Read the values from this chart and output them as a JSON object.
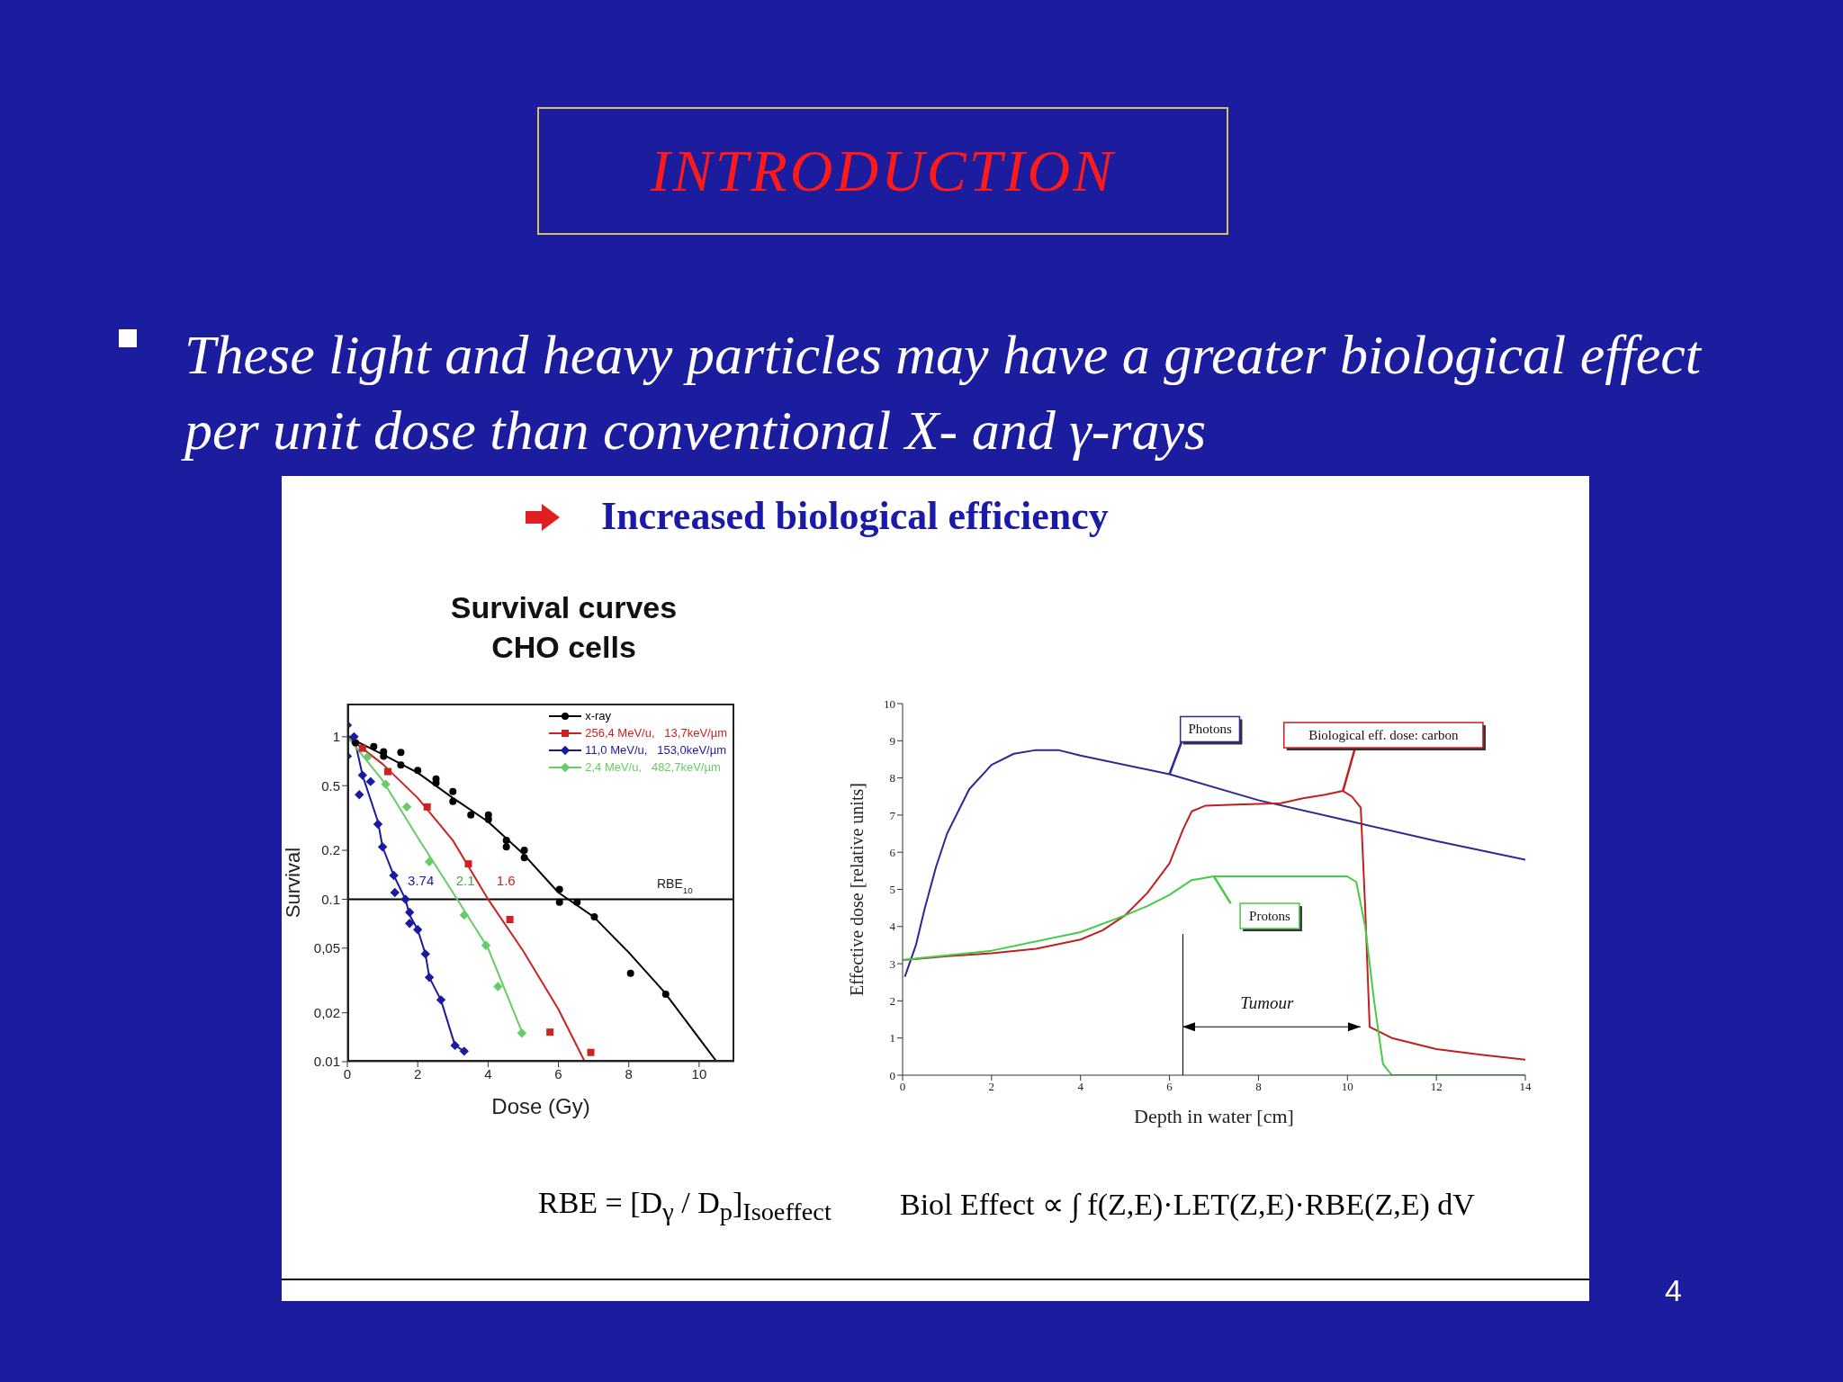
{
  "chart_data": [
    {
      "type": "other",
      "title": "INTRODUCTION",
      "annotations": [
        "These light and heavy particles may have a greater biological effect per unit dose than conventional X- and γ-rays",
        "Increased biological efficiency",
        "RBE = [D$_{γ}$ / D$_{p}$]$_{Isoeffect}$",
        "Biol Effect ∝ ∫ f(Z,E)·LET(Z,E)·RBE(Z,E) dV",
        "4"
      ]
    },
    {
      "type": "scatter",
      "title": "Survival curves",
      "subtitle": "CHO cells",
      "xlabel": "Dose (Gy)",
      "ylabel": "Survival",
      "log": "y",
      "xlim": [
        0,
        11
      ],
      "xticks": [
        0,
        2,
        4,
        6,
        8,
        10
      ],
      "ylim": [
        0.01,
        1.6
      ],
      "yticks": [
        0.01,
        {
          "value": 0.02,
          "label": "0,02"
        },
        {
          "value": 0.05,
          "label": "0,05"
        },
        0.1,
        0.2,
        0.5,
        1
      ],
      "legend": "top right",
      "ref_lines": [
        {
          "axis": "y",
          "value": 0.1,
          "label": "RBE$_{10}$"
        }
      ],
      "annotations": [
        "3.74",
        "2.1",
        "1.6"
      ],
      "series": [
        {
          "name": "x-ray",
          "color": "#000000",
          "marker": "circle",
          "x": [
            0.23,
            0.75,
            1.03,
            1.03,
            1.52,
            1.52,
            2.0,
            2.52,
            2.52,
            3.0,
            3.0,
            3.51,
            4.01,
            4.01,
            4.52,
            4.52,
            5.03,
            5.03,
            6.03,
            6.03,
            6.53,
            7.02,
            8.05,
            9.05
          ],
          "values": [
            0.92,
            0.87,
            0.81,
            0.76,
            0.8,
            0.67,
            0.62,
            0.55,
            0.52,
            0.46,
            0.4,
            0.33,
            0.33,
            0.31,
            0.23,
            0.21,
            0.2,
            0.18,
            0.115,
            0.096,
            0.096,
            0.078,
            0.035,
            0.026
          ]
        },
        {
          "type": "line",
          "color": "#000000",
          "x": [
            0,
            1,
            2,
            3,
            4,
            5,
            6,
            7,
            8,
            9,
            10.5
          ],
          "values": [
            1,
            0.78,
            0.6,
            0.42,
            0.3,
            0.19,
            0.11,
            0.078,
            0.047,
            0.027,
            0.01
          ]
        },
        {
          "name": "256,4 MeV/u,   13,7keV/µm",
          "color": "#cc2222",
          "marker": "square",
          "x": [
            0.43,
            1.15,
            2.27,
            3.44,
            4.62,
            5.76,
            6.92
          ],
          "values": [
            0.85,
            0.61,
            0.37,
            0.165,
            0.075,
            0.0152,
            0.0114
          ]
        },
        {
          "type": "line",
          "color": "#cc2222",
          "x": [
            0,
            1,
            2,
            3,
            4,
            5,
            6,
            6.75
          ],
          "values": [
            1,
            0.68,
            0.42,
            0.23,
            0.1,
            0.048,
            0.021,
            0.01
          ]
        },
        {
          "name": "11,0 MeV/u,   153,0keV/µm",
          "color": "#1a1aa0",
          "marker": "diamond",
          "x": [
            0,
            0,
            0.19,
            0.34,
            0.43,
            0.66,
            0.87,
            1.0,
            1.32,
            1.35,
            1.65,
            1.77,
            1.77,
            2.0,
            2.22,
            2.33,
            2.66,
            3.06,
            3.32
          ],
          "values": [
            1.18,
            0.76,
            1.0,
            0.44,
            0.58,
            0.53,
            0.29,
            0.21,
            0.14,
            0.11,
            0.1,
            0.083,
            0.071,
            0.065,
            0.046,
            0.033,
            0.024,
            0.0126,
            0.0116
          ]
        },
        {
          "type": "line",
          "color": "#1a1aa0",
          "x": [
            0,
            0.19,
            0.43,
            0.87,
            1.0,
            1.32,
            1.65,
            1.77,
            2.0,
            2.22,
            2.33,
            2.66,
            3.06,
            3.32
          ],
          "values": [
            1,
            1,
            0.58,
            0.3,
            0.21,
            0.14,
            0.1,
            0.08,
            0.065,
            0.046,
            0.033,
            0.024,
            0.0126,
            0.0116
          ]
        },
        {
          "name": "2,4 MeV/u,   482,7keV/µm",
          "color": "#66cc66",
          "marker": "diamond",
          "x": [
            0.57,
            1.09,
            1.69,
            2.33,
            3.32,
            3.94,
            4.28,
            4.96
          ],
          "values": [
            0.75,
            0.51,
            0.37,
            0.17,
            0.08,
            0.052,
            0.029,
            0.015
          ]
        },
        {
          "type": "line",
          "color": "#66cc66",
          "x": [
            0,
            1,
            2,
            3,
            4,
            5
          ],
          "values": [
            1,
            0.54,
            0.24,
            0.11,
            0.05,
            0.0146
          ]
        }
      ]
    },
    {
      "type": "line",
      "xlabel": "Depth in water [cm]",
      "ylabel": "Effective dose [relative units]",
      "xlim": [
        0,
        14
      ],
      "xticks": [
        0,
        2,
        4,
        6,
        8,
        10,
        12,
        14
      ],
      "ylim": [
        0,
        10
      ],
      "yticks": [
        0,
        1,
        2,
        3,
        4,
        5,
        6,
        7,
        8,
        9,
        10
      ],
      "annotations": [
        "Tumour"
      ],
      "series": [
        {
          "name": "Photons",
          "color": "#2a2a90",
          "x": [
            0.05,
            0.3,
            0.5,
            0.75,
            1,
            1.5,
            2,
            2.5,
            3,
            3.5,
            4,
            6,
            8,
            10,
            12,
            14
          ],
          "values": [
            2.65,
            3.5,
            4.5,
            5.6,
            6.5,
            7.7,
            8.35,
            8.65,
            8.75,
            8.75,
            8.6,
            8.1,
            7.4,
            6.85,
            6.3,
            5.8
          ]
        },
        {
          "name": "Biological eff. dose: carbon",
          "color": "#c02020",
          "x": [
            0,
            1,
            2,
            3,
            4,
            4.5,
            5,
            5.5,
            6,
            6.3,
            6.5,
            6.8,
            7.5,
            8,
            8.5,
            9,
            9.5,
            9.9,
            10.1,
            10.3,
            10.4,
            10.5,
            11,
            12,
            13,
            14
          ],
          "values": [
            3.1,
            3.2,
            3.28,
            3.4,
            3.65,
            3.9,
            4.3,
            4.9,
            5.7,
            6.6,
            7.1,
            7.25,
            7.28,
            7.3,
            7.32,
            7.45,
            7.55,
            7.65,
            7.5,
            7.2,
            4.5,
            1.3,
            1.0,
            0.7,
            0.55,
            0.42
          ]
        },
        {
          "name": "Protons",
          "color": "#44cc44",
          "x": [
            0,
            2,
            4,
            5,
            5.5,
            6,
            6.5,
            7,
            10,
            10.2,
            10.4,
            10.6,
            10.8,
            11,
            14
          ],
          "values": [
            3.1,
            3.35,
            3.85,
            4.3,
            4.55,
            4.85,
            5.25,
            5.35,
            5.35,
            5.2,
            4.0,
            2.0,
            0.3,
            0,
            0
          ]
        }
      ]
    }
  ]
}
